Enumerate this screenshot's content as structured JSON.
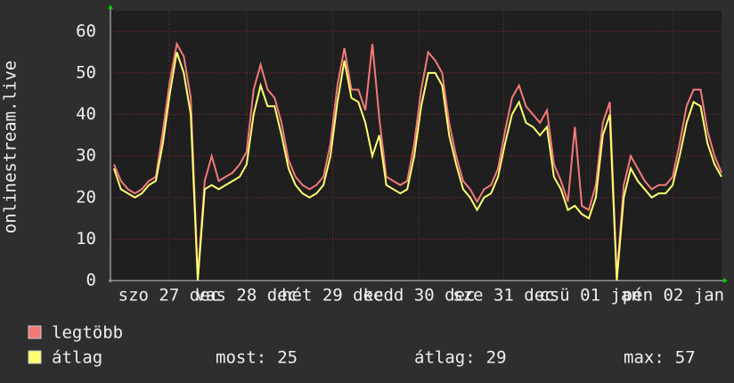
{
  "chart_data": {
    "type": "line",
    "y_label": "onlinestream.live",
    "xlim": [
      0,
      87.5
    ],
    "ylim": [
      0,
      65
    ],
    "yticks": [
      0,
      10,
      20,
      30,
      40,
      50,
      60
    ],
    "xticks": [
      {
        "value": 8.4,
        "label": "szo 27 dec"
      },
      {
        "value": 19.5,
        "label": "vas 28 dec"
      },
      {
        "value": 31.8,
        "label": "hét 29 dec"
      },
      {
        "value": 44.2,
        "label": "kedd 30 dec"
      },
      {
        "value": 56.3,
        "label": "sze 31 dec"
      },
      {
        "value": 68.7,
        "label": "csü 01 jan"
      },
      {
        "value": 80.6,
        "label": "pén 02 jan"
      }
    ],
    "grid": true,
    "series": [
      {
        "name": "legtöbb",
        "color": "#f47a7a",
        "values": [
          28,
          24,
          22,
          21,
          22,
          24,
          25,
          36,
          48,
          57,
          54,
          44,
          1,
          24,
          30,
          24,
          25,
          26,
          28,
          31,
          46,
          52,
          46,
          44,
          38,
          29,
          25,
          23,
          22,
          23,
          25,
          33,
          47,
          56,
          46,
          46,
          41,
          57,
          39,
          25,
          24,
          23,
          24,
          33,
          46,
          55,
          53,
          50,
          38,
          30,
          24,
          22,
          19,
          22,
          23,
          27,
          36,
          44,
          47,
          42,
          40,
          38,
          41,
          28,
          24,
          19,
          37,
          18,
          17,
          23,
          38,
          43,
          1,
          23,
          30,
          27,
          24,
          22,
          23,
          23,
          25,
          33,
          42,
          46,
          46,
          36,
          30,
          26
        ]
      },
      {
        "name": "átlag",
        "color": "#ffff70",
        "values": [
          27,
          22,
          21,
          20,
          21,
          23,
          24,
          33,
          45,
          55,
          50,
          40,
          0,
          22,
          23,
          22,
          23,
          24,
          25,
          28,
          40,
          47,
          42,
          42,
          35,
          27,
          23,
          21,
          20,
          21,
          23,
          30,
          43,
          53,
          44,
          43,
          38,
          30,
          35,
          23,
          22,
          21,
          22,
          30,
          42,
          50,
          50,
          47,
          35,
          28,
          22,
          20,
          17,
          20,
          21,
          25,
          33,
          40,
          43,
          38,
          37,
          35,
          37,
          25,
          22,
          17,
          18,
          16,
          15,
          20,
          35,
          40,
          0,
          20,
          27,
          24,
          22,
          20,
          21,
          21,
          23,
          30,
          38,
          43,
          42,
          33,
          28,
          25
        ]
      }
    ],
    "stats": [
      {
        "label": "most:",
        "value": 25
      },
      {
        "label": "átlag:",
        "value": 29
      },
      {
        "label": "max:",
        "value": 57
      }
    ]
  }
}
